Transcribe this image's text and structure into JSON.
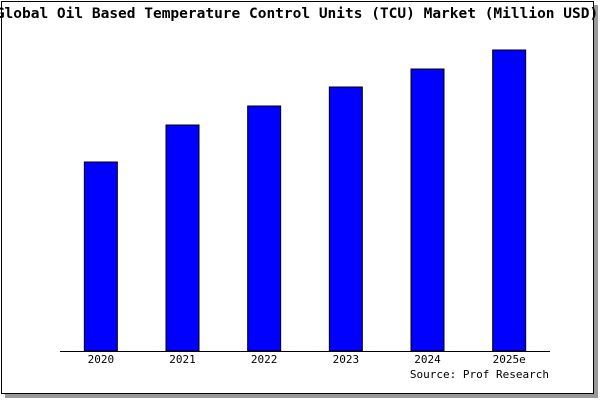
{
  "chart_data": {
    "type": "bar",
    "title": "Global Oil Based Temperature Control Units (TCU) Market (Million USD)",
    "categories": [
      "2020",
      "2021",
      "2022",
      "2023",
      "2024",
      "2025e"
    ],
    "values": [
      189,
      226,
      245,
      264,
      282,
      301
    ],
    "color": "#0000ff",
    "ylim": [
      0,
      303
    ],
    "source": "Source: Prof Research"
  }
}
